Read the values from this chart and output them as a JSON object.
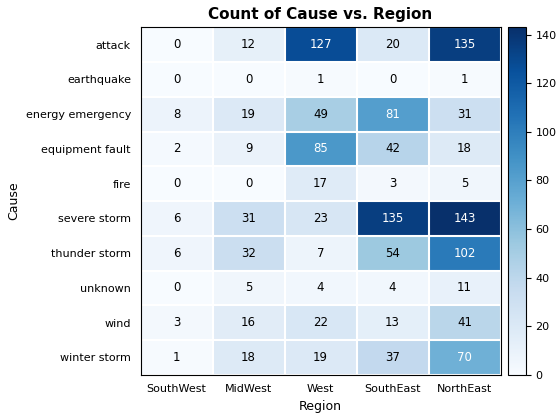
{
  "title": "Count of Cause vs. Region",
  "xlabel": "Region",
  "ylabel": "Cause",
  "causes": [
    "attack",
    "earthquake",
    "energy emergency",
    "equipment fault",
    "fire",
    "severe storm",
    "thunder storm",
    "unknown",
    "wind",
    "winter storm"
  ],
  "regions": [
    "SouthWest",
    "MidWest",
    "West",
    "SouthEast",
    "NorthEast"
  ],
  "values": [
    [
      0,
      12,
      127,
      20,
      135
    ],
    [
      0,
      0,
      1,
      0,
      1
    ],
    [
      8,
      19,
      49,
      81,
      31
    ],
    [
      2,
      9,
      85,
      42,
      18
    ],
    [
      0,
      0,
      17,
      3,
      5
    ],
    [
      6,
      31,
      23,
      135,
      143
    ],
    [
      6,
      32,
      7,
      54,
      102
    ],
    [
      0,
      5,
      4,
      4,
      11
    ],
    [
      3,
      16,
      22,
      13,
      41
    ],
    [
      1,
      18,
      19,
      37,
      70
    ]
  ],
  "colormap": "Blues",
  "vmin": 0,
  "vmax": 143,
  "cbar_ticks": [
    0,
    20,
    40,
    60,
    80,
    100,
    120,
    140
  ],
  "text_threshold": 70,
  "figsize": [
    5.6,
    4.2
  ],
  "dpi": 100,
  "title_fontsize": 11,
  "axis_label_fontsize": 9,
  "tick_fontsize": 8,
  "cell_fontsize": 8.5
}
